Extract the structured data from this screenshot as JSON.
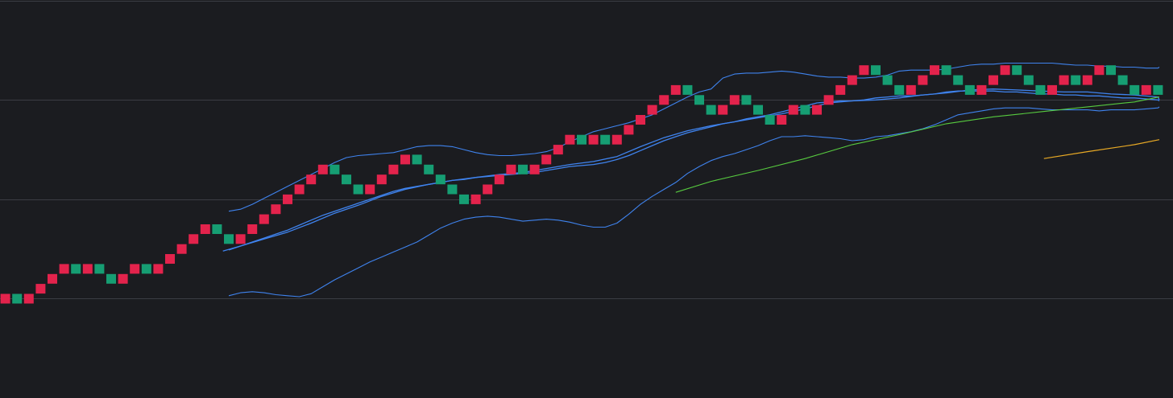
{
  "colors": {
    "background": "#1b1c20",
    "grid": "#3b3d44",
    "up_brick": "#e3234c",
    "down_brick": "#169e73",
    "bollinger_band": "#3f83ee",
    "ma_fast": "#3f83ee",
    "ma_slow": "#57cb3f",
    "ma_long": "#e8a925"
  },
  "chart_data": {
    "type": "renko",
    "grid": true,
    "legend": "none",
    "ylim": [
      -7.2,
      32.4
    ],
    "gridlines_y": [
      32,
      22,
      12,
      2
    ],
    "bricks": [
      {
        "i": 0,
        "level": 2,
        "dir": "up"
      },
      {
        "i": 1,
        "level": 2,
        "dir": "down"
      },
      {
        "i": 2,
        "level": 2,
        "dir": "up"
      },
      {
        "i": 3,
        "level": 3,
        "dir": "up"
      },
      {
        "i": 4,
        "level": 4,
        "dir": "up"
      },
      {
        "i": 5,
        "level": 5,
        "dir": "up"
      },
      {
        "i": 6,
        "level": 5,
        "dir": "down"
      },
      {
        "i": 7,
        "level": 5,
        "dir": "up"
      },
      {
        "i": 8,
        "level": 5,
        "dir": "down"
      },
      {
        "i": 9,
        "level": 4,
        "dir": "down"
      },
      {
        "i": 10,
        "level": 4,
        "dir": "up"
      },
      {
        "i": 11,
        "level": 5,
        "dir": "up"
      },
      {
        "i": 12,
        "level": 5,
        "dir": "down"
      },
      {
        "i": 13,
        "level": 5,
        "dir": "up"
      },
      {
        "i": 14,
        "level": 6,
        "dir": "up"
      },
      {
        "i": 15,
        "level": 7,
        "dir": "up"
      },
      {
        "i": 16,
        "level": 8,
        "dir": "up"
      },
      {
        "i": 17,
        "level": 9,
        "dir": "up"
      },
      {
        "i": 18,
        "level": 9,
        "dir": "down"
      },
      {
        "i": 19,
        "level": 8,
        "dir": "down"
      },
      {
        "i": 20,
        "level": 8,
        "dir": "up"
      },
      {
        "i": 21,
        "level": 9,
        "dir": "up"
      },
      {
        "i": 22,
        "level": 10,
        "dir": "up"
      },
      {
        "i": 23,
        "level": 11,
        "dir": "up"
      },
      {
        "i": 24,
        "level": 12,
        "dir": "up"
      },
      {
        "i": 25,
        "level": 13,
        "dir": "up"
      },
      {
        "i": 26,
        "level": 14,
        "dir": "up"
      },
      {
        "i": 27,
        "level": 15,
        "dir": "up"
      },
      {
        "i": 28,
        "level": 15,
        "dir": "down"
      },
      {
        "i": 29,
        "level": 14,
        "dir": "down"
      },
      {
        "i": 30,
        "level": 13,
        "dir": "down"
      },
      {
        "i": 31,
        "level": 13,
        "dir": "up"
      },
      {
        "i": 32,
        "level": 14,
        "dir": "up"
      },
      {
        "i": 33,
        "level": 15,
        "dir": "up"
      },
      {
        "i": 34,
        "level": 16,
        "dir": "up"
      },
      {
        "i": 35,
        "level": 16,
        "dir": "down"
      },
      {
        "i": 36,
        "level": 15,
        "dir": "down"
      },
      {
        "i": 37,
        "level": 14,
        "dir": "down"
      },
      {
        "i": 38,
        "level": 13,
        "dir": "down"
      },
      {
        "i": 39,
        "level": 12,
        "dir": "down"
      },
      {
        "i": 40,
        "level": 12,
        "dir": "up"
      },
      {
        "i": 41,
        "level": 13,
        "dir": "up"
      },
      {
        "i": 42,
        "level": 14,
        "dir": "up"
      },
      {
        "i": 43,
        "level": 15,
        "dir": "up"
      },
      {
        "i": 44,
        "level": 15,
        "dir": "down"
      },
      {
        "i": 45,
        "level": 15,
        "dir": "up"
      },
      {
        "i": 46,
        "level": 16,
        "dir": "up"
      },
      {
        "i": 47,
        "level": 17,
        "dir": "up"
      },
      {
        "i": 48,
        "level": 18,
        "dir": "up"
      },
      {
        "i": 49,
        "level": 18,
        "dir": "down"
      },
      {
        "i": 50,
        "level": 18,
        "dir": "up"
      },
      {
        "i": 51,
        "level": 18,
        "dir": "down"
      },
      {
        "i": 52,
        "level": 18,
        "dir": "up"
      },
      {
        "i": 53,
        "level": 19,
        "dir": "up"
      },
      {
        "i": 54,
        "level": 20,
        "dir": "up"
      },
      {
        "i": 55,
        "level": 21,
        "dir": "up"
      },
      {
        "i": 56,
        "level": 22,
        "dir": "up"
      },
      {
        "i": 57,
        "level": 23,
        "dir": "up"
      },
      {
        "i": 58,
        "level": 23,
        "dir": "down"
      },
      {
        "i": 59,
        "level": 22,
        "dir": "down"
      },
      {
        "i": 60,
        "level": 21,
        "dir": "down"
      },
      {
        "i": 61,
        "level": 21,
        "dir": "up"
      },
      {
        "i": 62,
        "level": 22,
        "dir": "up"
      },
      {
        "i": 63,
        "level": 22,
        "dir": "down"
      },
      {
        "i": 64,
        "level": 21,
        "dir": "down"
      },
      {
        "i": 65,
        "level": 20,
        "dir": "down"
      },
      {
        "i": 66,
        "level": 20,
        "dir": "up"
      },
      {
        "i": 67,
        "level": 21,
        "dir": "up"
      },
      {
        "i": 68,
        "level": 21,
        "dir": "down"
      },
      {
        "i": 69,
        "level": 21,
        "dir": "up"
      },
      {
        "i": 70,
        "level": 22,
        "dir": "up"
      },
      {
        "i": 71,
        "level": 23,
        "dir": "up"
      },
      {
        "i": 72,
        "level": 24,
        "dir": "up"
      },
      {
        "i": 73,
        "level": 25,
        "dir": "up"
      },
      {
        "i": 74,
        "level": 25,
        "dir": "down"
      },
      {
        "i": 75,
        "level": 24,
        "dir": "down"
      },
      {
        "i": 76,
        "level": 23,
        "dir": "down"
      },
      {
        "i": 77,
        "level": 23,
        "dir": "up"
      },
      {
        "i": 78,
        "level": 24,
        "dir": "up"
      },
      {
        "i": 79,
        "level": 25,
        "dir": "up"
      },
      {
        "i": 80,
        "level": 25,
        "dir": "down"
      },
      {
        "i": 81,
        "level": 24,
        "dir": "down"
      },
      {
        "i": 82,
        "level": 23,
        "dir": "down"
      },
      {
        "i": 83,
        "level": 23,
        "dir": "up"
      },
      {
        "i": 84,
        "level": 24,
        "dir": "up"
      },
      {
        "i": 85,
        "level": 25,
        "dir": "up"
      },
      {
        "i": 86,
        "level": 25,
        "dir": "down"
      },
      {
        "i": 87,
        "level": 24,
        "dir": "down"
      },
      {
        "i": 88,
        "level": 23,
        "dir": "down"
      },
      {
        "i": 89,
        "level": 23,
        "dir": "up"
      },
      {
        "i": 90,
        "level": 24,
        "dir": "up"
      },
      {
        "i": 91,
        "level": 24,
        "dir": "down"
      },
      {
        "i": 92,
        "level": 24,
        "dir": "up"
      },
      {
        "i": 93,
        "level": 25,
        "dir": "up"
      },
      {
        "i": 94,
        "level": 25,
        "dir": "down"
      },
      {
        "i": 95,
        "level": 24,
        "dir": "down"
      },
      {
        "i": 96,
        "level": 23,
        "dir": "down"
      },
      {
        "i": 97,
        "level": 23,
        "dir": "up"
      },
      {
        "i": 98,
        "level": 23,
        "dir": "down"
      }
    ],
    "series": [
      {
        "kind": "bollinger_upper",
        "x": [
          19,
          20,
          21,
          22,
          23,
          24,
          25,
          26,
          27,
          28,
          29,
          30,
          31,
          32,
          33,
          34,
          35,
          36,
          37,
          38,
          39,
          40,
          41,
          42,
          43,
          44,
          45,
          46,
          47,
          48,
          49,
          50,
          51,
          52,
          53,
          54,
          55,
          56,
          57,
          58,
          59,
          60,
          61,
          62,
          63,
          64,
          65,
          66,
          67,
          68,
          69,
          70,
          71,
          72,
          73,
          74,
          75,
          76,
          77,
          78,
          79,
          80,
          81,
          82,
          83,
          84,
          85,
          86,
          87,
          88,
          89,
          90,
          91,
          92,
          93,
          94,
          95,
          96,
          97,
          98,
          99
        ],
        "y": [
          10.8,
          11.0,
          11.5,
          12.1,
          12.7,
          13.3,
          13.9,
          14.5,
          15.1,
          15.7,
          16.2,
          16.4,
          16.5,
          16.6,
          16.7,
          17.0,
          17.3,
          17.4,
          17.4,
          17.3,
          17.0,
          16.7,
          16.5,
          16.4,
          16.4,
          16.5,
          16.6,
          16.8,
          17.2,
          17.8,
          18.3,
          18.8,
          19.1,
          19.4,
          19.7,
          20.1,
          20.5,
          21.1,
          21.7,
          22.3,
          22.8,
          23.1,
          24.2,
          24.6,
          24.7,
          24.7,
          24.8,
          24.9,
          24.8,
          24.6,
          24.4,
          24.3,
          24.3,
          24.2,
          24.2,
          24.3,
          24.5,
          24.9,
          25.0,
          25.0,
          25.0,
          25.1,
          25.3,
          25.5,
          25.6,
          25.6,
          25.7,
          25.7,
          25.7,
          25.7,
          25.7,
          25.6,
          25.5,
          25.5,
          25.4,
          25.4,
          25.3,
          25.3,
          25.2,
          25.2,
          25.3
        ]
      },
      {
        "kind": "bollinger_middle",
        "x": [
          19,
          20,
          21,
          22,
          23,
          24,
          25,
          26,
          27,
          28,
          29,
          30,
          31,
          32,
          33,
          34,
          35,
          36,
          37,
          38,
          39,
          40,
          41,
          42,
          43,
          44,
          45,
          46,
          47,
          48,
          49,
          50,
          51,
          52,
          53,
          54,
          55,
          56,
          57,
          58,
          59,
          60,
          61,
          62,
          63,
          64,
          65,
          66,
          67,
          68,
          69,
          70,
          71,
          72,
          73,
          74,
          75,
          76,
          77,
          78,
          79,
          80,
          81,
          82,
          83,
          84,
          85,
          86,
          87,
          88,
          89,
          90,
          91,
          92,
          93,
          94,
          95,
          96,
          97,
          98,
          99
        ],
        "y": [
          6.9,
          7.3,
          7.7,
          8.1,
          8.5,
          8.9,
          9.4,
          9.9,
          10.4,
          10.8,
          11.2,
          11.6,
          12.0,
          12.4,
          12.8,
          13.1,
          13.3,
          13.5,
          13.7,
          13.9,
          14.0,
          14.2,
          14.3,
          14.4,
          14.5,
          14.6,
          14.7,
          14.9,
          15.1,
          15.3,
          15.4,
          15.5,
          15.7,
          16.0,
          16.4,
          16.9,
          17.4,
          17.9,
          18.3,
          18.7,
          19.0,
          19.3,
          19.6,
          19.8,
          20.1,
          20.3,
          20.5,
          20.8,
          21.1,
          21.4,
          21.7,
          21.8,
          21.9,
          21.9,
          22.0,
          22.2,
          22.3,
          22.4,
          22.4,
          22.5,
          22.6,
          22.8,
          22.9,
          22.9,
          22.9,
          22.9,
          22.8,
          22.8,
          22.7,
          22.6,
          22.6,
          22.5,
          22.5,
          22.4,
          22.4,
          22.3,
          22.2,
          22.2,
          22.1,
          22.0,
          21.9
        ]
      },
      {
        "kind": "bollinger_lower",
        "x": [
          19,
          20,
          21,
          22,
          23,
          24,
          25,
          26,
          27,
          28,
          29,
          30,
          31,
          32,
          33,
          34,
          35,
          36,
          37,
          38,
          39,
          40,
          41,
          42,
          43,
          44,
          45,
          46,
          47,
          48,
          49,
          50,
          51,
          52,
          53,
          54,
          55,
          56,
          57,
          58,
          59,
          60,
          61,
          62,
          63,
          64,
          65,
          66,
          67,
          68,
          69,
          70,
          71,
          72,
          73,
          74,
          75,
          76,
          77,
          78,
          79,
          80,
          81,
          82,
          83,
          84,
          85,
          86,
          87,
          88,
          89,
          90,
          91,
          92,
          93,
          94,
          95,
          96,
          97,
          98,
          99
        ],
        "y": [
          2.3,
          2.6,
          2.7,
          2.6,
          2.4,
          2.3,
          2.2,
          2.5,
          3.2,
          3.9,
          4.5,
          5.1,
          5.7,
          6.2,
          6.7,
          7.2,
          7.7,
          8.4,
          9.1,
          9.6,
          10.0,
          10.2,
          10.3,
          10.2,
          10.0,
          9.8,
          9.9,
          10.0,
          9.9,
          9.7,
          9.4,
          9.2,
          9.2,
          9.6,
          10.5,
          11.5,
          12.3,
          13.0,
          13.7,
          14.6,
          15.3,
          15.9,
          16.3,
          16.6,
          17.0,
          17.4,
          17.9,
          18.3,
          18.3,
          18.4,
          18.3,
          18.2,
          18.1,
          17.9,
          18.0,
          18.3,
          18.4,
          18.6,
          18.8,
          19.1,
          19.5,
          20.0,
          20.5,
          20.7,
          20.9,
          21.1,
          21.2,
          21.2,
          21.2,
          21.1,
          21.0,
          21.0,
          21.0,
          21.0,
          20.9,
          21.0,
          21.0,
          21.0,
          21.1,
          21.2,
          21.3
        ]
      },
      {
        "kind": "moving_average_fast",
        "x": [
          18.5,
          20,
          22,
          24,
          26,
          28,
          30,
          32,
          34,
          36,
          38,
          40,
          42,
          44,
          46,
          48,
          50,
          52,
          54,
          56,
          58,
          60,
          62,
          64,
          66,
          68,
          70,
          72,
          74,
          76,
          78,
          80,
          82,
          84,
          86,
          88,
          90,
          92,
          94,
          96,
          98,
          99
        ],
        "y": [
          6.8,
          7.3,
          8.0,
          8.7,
          9.6,
          10.6,
          11.4,
          12.3,
          13.0,
          13.5,
          13.9,
          14.2,
          14.5,
          14.7,
          15.1,
          15.5,
          15.8,
          16.3,
          17.3,
          18.2,
          18.9,
          19.4,
          19.8,
          20.2,
          20.6,
          21.1,
          21.7,
          21.9,
          22.0,
          22.2,
          22.5,
          22.7,
          23.0,
          23.1,
          23.0,
          22.9,
          22.8,
          22.8,
          22.6,
          22.5,
          22.3,
          22.0
        ]
      },
      {
        "kind": "moving_average_slow",
        "x": [
          57,
          60,
          64,
          68,
          72,
          76,
          80,
          84,
          88,
          92,
          96,
          99
        ],
        "y": [
          12.7,
          13.8,
          14.9,
          16.1,
          17.5,
          18.5,
          19.6,
          20.3,
          20.8,
          21.3,
          21.8,
          22.3
        ]
      },
      {
        "kind": "moving_average_long",
        "x": [
          88.3,
          92,
          96,
          99
        ],
        "y": [
          16.1,
          16.8,
          17.5,
          18.0
        ]
      }
    ]
  }
}
